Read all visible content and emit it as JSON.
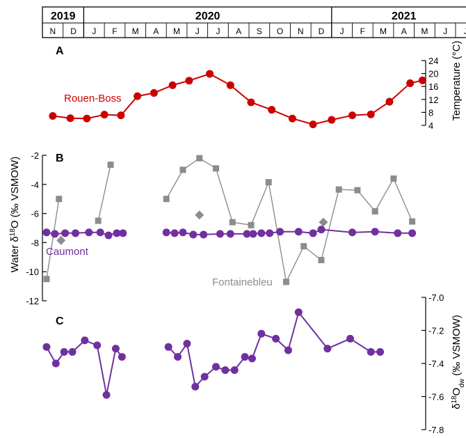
{
  "chart_data": {
    "type": "line",
    "timeline": {
      "years": [
        {
          "label": "2019",
          "start": 0,
          "end": 2
        },
        {
          "label": "2020",
          "start": 2,
          "end": 14
        },
        {
          "label": "2021",
          "start": 14,
          "end": 21
        }
      ],
      "months": [
        "N",
        "D",
        "J",
        "F",
        "M",
        "A",
        "M",
        "J",
        "J",
        "A",
        "S",
        "O",
        "N",
        "D",
        "J",
        "F",
        "M",
        "A",
        "M",
        "J",
        "J"
      ]
    },
    "panels": [
      {
        "label": "A",
        "y_axis": {
          "side": "right",
          "label": "Temperature (°C)",
          "ylim": [
            4,
            24
          ],
          "ticks": [
            4,
            8,
            12,
            16,
            20,
            24
          ]
        },
        "series": [
          {
            "name": "Rouen-Boss",
            "color": "#cc0000",
            "marker": "circle",
            "points": [
              {
                "x": 0.0,
                "y": 6.9
              },
              {
                "x": 0.85,
                "y": 6.2
              },
              {
                "x": 1.65,
                "y": 6.1
              },
              {
                "x": 2.5,
                "y": 7.3
              },
              {
                "x": 3.3,
                "y": 7.1
              },
              {
                "x": 4.1,
                "y": 13.0
              },
              {
                "x": 4.9,
                "y": 14.0
              },
              {
                "x": 5.8,
                "y": 16.4
              },
              {
                "x": 6.6,
                "y": 17.8
              },
              {
                "x": 7.6,
                "y": 19.9
              },
              {
                "x": 8.6,
                "y": 16.4
              },
              {
                "x": 9.6,
                "y": 11.1
              },
              {
                "x": 10.6,
                "y": 8.8
              },
              {
                "x": 11.6,
                "y": 6.1
              },
              {
                "x": 12.6,
                "y": 4.3
              },
              {
                "x": 13.5,
                "y": 5.7
              },
              {
                "x": 14.5,
                "y": 7.1
              },
              {
                "x": 15.4,
                "y": 7.4
              },
              {
                "x": 16.3,
                "y": 11.3
              },
              {
                "x": 17.3,
                "y": 17.0
              },
              {
                "x": 17.9,
                "y": 17.9
              }
            ]
          }
        ]
      },
      {
        "label": "B",
        "y_axis": {
          "side": "left",
          "label": "Water δ18O (‰ VSMOW)",
          "ylim": [
            -12,
            -2
          ],
          "ticks": [
            -12,
            -10,
            -8,
            -6,
            -4,
            -2
          ]
        },
        "series": [
          {
            "name": "Fontainebleu",
            "color": "#8c8c8c",
            "marker": "square",
            "segments": [
              [
                {
                  "x": -0.3,
                  "y": -10.5
                },
                {
                  "x": 0.3,
                  "y": -5.0
                }
              ],
              [
                {
                  "x": 2.2,
                  "y": -6.5
                },
                {
                  "x": 2.8,
                  "y": -2.65
                }
              ],
              [
                {
                  "x": 5.5,
                  "y": -5.0
                },
                {
                  "x": 6.3,
                  "y": -3.0
                },
                {
                  "x": 7.1,
                  "y": -2.2
                },
                {
                  "x": 7.9,
                  "y": -2.9
                },
                {
                  "x": 8.7,
                  "y": -6.6
                },
                {
                  "x": 9.6,
                  "y": -6.8
                },
                {
                  "x": 10.45,
                  "y": -3.85
                },
                {
                  "x": 11.3,
                  "y": -10.7
                },
                {
                  "x": 12.15,
                  "y": -8.25
                },
                {
                  "x": 13.0,
                  "y": -9.2
                },
                {
                  "x": 13.85,
                  "y": -4.35
                },
                {
                  "x": 14.75,
                  "y": -4.4
                },
                {
                  "x": 15.6,
                  "y": -5.85
                },
                {
                  "x": 16.5,
                  "y": -3.6
                },
                {
                  "x": 17.4,
                  "y": -6.55
                }
              ]
            ]
          },
          {
            "name": "",
            "color": "#8c8c8c",
            "marker": "diamond",
            "points": [
              {
                "x": 0.4,
                "y": -7.85
              },
              {
                "x": 7.1,
                "y": -6.1
              },
              {
                "x": 13.1,
                "y": -6.6
              }
            ]
          },
          {
            "name": "Caumont",
            "color": "#7030a0",
            "marker": "circle",
            "segments": [
              [
                {
                  "x": -0.3,
                  "y": -7.3
                },
                {
                  "x": 0.1,
                  "y": -7.4
                },
                {
                  "x": 0.6,
                  "y": -7.35
                },
                {
                  "x": 1.1,
                  "y": -7.35
                },
                {
                  "x": 1.75,
                  "y": -7.3
                },
                {
                  "x": 2.3,
                  "y": -7.3
                },
                {
                  "x": 2.7,
                  "y": -7.5
                },
                {
                  "x": 3.1,
                  "y": -7.35
                },
                {
                  "x": 3.4,
                  "y": -7.35
                }
              ],
              [
                {
                  "x": 5.5,
                  "y": -7.3
                },
                {
                  "x": 5.9,
                  "y": -7.35
                },
                {
                  "x": 6.3,
                  "y": -7.3
                },
                {
                  "x": 6.8,
                  "y": -7.45
                },
                {
                  "x": 7.3,
                  "y": -7.45
                },
                {
                  "x": 8.1,
                  "y": -7.4
                },
                {
                  "x": 8.6,
                  "y": -7.4
                },
                {
                  "x": 9.4,
                  "y": -7.4
                },
                {
                  "x": 9.7,
                  "y": -7.4
                },
                {
                  "x": 10.1,
                  "y": -7.35
                },
                {
                  "x": 10.5,
                  "y": -7.35
                },
                {
                  "x": 11.0,
                  "y": -7.25
                },
                {
                  "x": 11.9,
                  "y": -7.25
                },
                {
                  "x": 12.6,
                  "y": -7.35
                },
                {
                  "x": 13.0,
                  "y": -7.1
                },
                {
                  "x": 14.5,
                  "y": -7.3
                },
                {
                  "x": 15.6,
                  "y": -7.25
                },
                {
                  "x": 16.7,
                  "y": -7.35
                },
                {
                  "x": 17.4,
                  "y": -7.35
                }
              ],
              [
                {
                  "x": 20.8,
                  "y": -7.3
                }
              ]
            ]
          }
        ]
      },
      {
        "label": "C",
        "y_axis": {
          "side": "right",
          "label": "δ18Odw (‰ VSMOW)",
          "ylim": [
            -7.8,
            -7.0
          ],
          "ticks": [
            -7.8,
            -7.6,
            -7.4,
            -7.2,
            -7.0
          ]
        },
        "series": [
          {
            "name": "",
            "color": "#7030a0",
            "marker": "circle",
            "segments": [
              [
                {
                  "x": -0.3,
                  "y": -7.3
                },
                {
                  "x": 0.15,
                  "y": -7.4
                },
                {
                  "x": 0.55,
                  "y": -7.33
                },
                {
                  "x": 0.95,
                  "y": -7.33
                },
                {
                  "x": 1.55,
                  "y": -7.26
                },
                {
                  "x": 2.15,
                  "y": -7.29
                },
                {
                  "x": 2.6,
                  "y": -7.59
                },
                {
                  "x": 3.05,
                  "y": -7.31
                },
                {
                  "x": 3.35,
                  "y": -7.36
                }
              ],
              [
                {
                  "x": 5.6,
                  "y": -7.3
                },
                {
                  "x": 6.05,
                  "y": -7.36
                },
                {
                  "x": 6.5,
                  "y": -7.28
                },
                {
                  "x": 6.9,
                  "y": -7.54
                },
                {
                  "x": 7.35,
                  "y": -7.48
                },
                {
                  "x": 7.9,
                  "y": -7.42
                },
                {
                  "x": 8.35,
                  "y": -7.44
                },
                {
                  "x": 8.8,
                  "y": -7.44
                },
                {
                  "x": 9.3,
                  "y": -7.36
                },
                {
                  "x": 9.65,
                  "y": -7.37
                },
                {
                  "x": 10.1,
                  "y": -7.22
                },
                {
                  "x": 10.8,
                  "y": -7.25
                },
                {
                  "x": 11.4,
                  "y": -7.32
                },
                {
                  "x": 11.9,
                  "y": -7.09
                },
                {
                  "x": 13.3,
                  "y": -7.31
                },
                {
                  "x": 14.4,
                  "y": -7.25
                },
                {
                  "x": 15.4,
                  "y": -7.33
                },
                {
                  "x": 15.85,
                  "y": -7.33
                }
              ]
            ]
          }
        ]
      }
    ]
  }
}
